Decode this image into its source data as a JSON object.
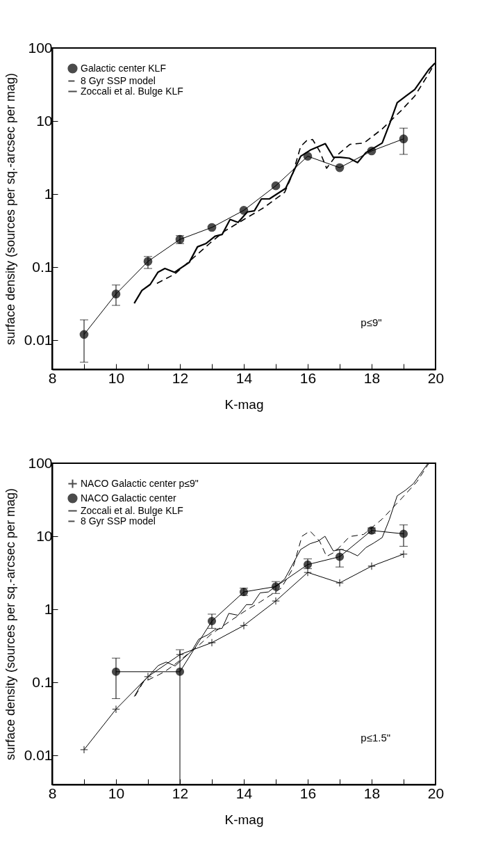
{
  "chart_data": [
    {
      "type": "line",
      "xlabel": "K-mag",
      "ylabel": "surface density (sources per sq.-arcsec per mag)",
      "log": true,
      "xlim": [
        8,
        20
      ],
      "ylim": [
        0.004,
        100
      ],
      "xticks": [
        8,
        {
          "value": 9,
          "label": null
        },
        10,
        {
          "value": 11,
          "label": null
        },
        12,
        {
          "value": 13,
          "label": null
        },
        14,
        {
          "value": 15,
          "label": null
        },
        16,
        {
          "value": 17,
          "label": null
        },
        18,
        {
          "value": 19,
          "label": null
        },
        20
      ],
      "yticks": [
        0.01,
        0.1,
        1,
        10,
        100
      ],
      "legend": "top left",
      "annotations": [
        "p≤9\""
      ],
      "series": [
        {
          "name": "Galactic center KLF",
          "color": "#000000",
          "marker": "circle",
          "line_style": "solid",
          "x": [
            9,
            10,
            11,
            12,
            13,
            14,
            15,
            16,
            17,
            18,
            19
          ],
          "values": [
            0.012,
            0.043,
            0.12,
            0.24,
            0.35,
            0.6,
            1.3,
            3.3,
            2.3,
            3.9,
            5.7
          ],
          "errors": [
            [
              0.005,
              0.019
            ],
            [
              0.03,
              0.057
            ],
            [
              0.096,
              0.14
            ],
            [
              0.21,
              0.27
            ],
            null,
            null,
            null,
            null,
            null,
            null,
            [
              3.5,
              8
            ]
          ]
        },
        {
          "name": "8 Gyr SSP model",
          "color": "#000000",
          "marker": "none",
          "line_style": "dashed",
          "x": [
            11.28,
            11.83,
            12.62,
            12.95,
            13.39,
            14.04,
            14.62,
            15.28,
            15.53,
            15.78,
            15.97,
            16.15,
            16.37,
            16.59,
            16.85,
            17.32,
            17.76,
            18.33,
            18.91,
            19.35,
            19.78,
            19.96
          ],
          "values": [
            0.06,
            0.08,
            0.16,
            0.215,
            0.31,
            0.46,
            0.65,
            1.06,
            1.9,
            4.5,
            5.4,
            5.6,
            3.9,
            2.26,
            3.2,
            4.8,
            5,
            7.8,
            13.7,
            22,
            44,
            60
          ]
        },
        {
          "name": "Zoccali et al. Bulge KLF",
          "color": "#000000",
          "marker": "none",
          "line_style": "solid",
          "x": [
            10.57,
            10.81,
            11.07,
            11.31,
            11.53,
            11.83,
            12.29,
            12.55,
            12.81,
            13.1,
            13.32,
            13.57,
            13.82,
            14.11,
            14.33,
            14.55,
            14.8,
            15.31,
            15.78,
            16.08,
            16.55,
            16.8,
            17.02,
            17.3,
            17.56,
            17.82,
            18.04,
            18.33,
            18.58,
            18.8,
            19.05,
            19.35,
            19.78,
            19.98
          ],
          "values": [
            0.032,
            0.048,
            0.058,
            0.085,
            0.096,
            0.085,
            0.116,
            0.19,
            0.21,
            0.265,
            0.28,
            0.45,
            0.41,
            0.57,
            0.59,
            0.86,
            0.86,
            1.2,
            3.3,
            4,
            4.9,
            3.2,
            3.2,
            3.1,
            2.7,
            3.7,
            4.2,
            5,
            9.6,
            17.8,
            21.6,
            27,
            50,
            62
          ]
        }
      ]
    },
    {
      "type": "line",
      "xlabel": "K-mag",
      "ylabel": "surface density (sources per sq.-arcsec per mag)",
      "log": true,
      "xlim": [
        8,
        20
      ],
      "ylim": [
        0.004,
        100
      ],
      "xticks": [
        8,
        {
          "value": 9,
          "label": null
        },
        10,
        {
          "value": 11,
          "label": null
        },
        12,
        {
          "value": 13,
          "label": null
        },
        14,
        {
          "value": 15,
          "label": null
        },
        16,
        {
          "value": 17,
          "label": null
        },
        18,
        {
          "value": 19,
          "label": null
        },
        20
      ],
      "yticks": [
        0.01,
        0.1,
        1,
        10,
        100
      ],
      "legend": "top left",
      "annotations": [
        "p≤1.5\""
      ],
      "series": [
        {
          "name": "NACO Galactic center p≤9\"",
          "color": "#000000",
          "marker": "cross",
          "line_style": "solid",
          "x": [
            9,
            10,
            11,
            12,
            13,
            14,
            15,
            16,
            17,
            18,
            19
          ],
          "values": [
            0.012,
            0.043,
            0.12,
            0.24,
            0.35,
            0.6,
            1.3,
            3.2,
            2.3,
            3.9,
            5.7
          ]
        },
        {
          "name": "NACO Galactic center",
          "color": "#000000",
          "marker": "circle",
          "line_style": "solid",
          "x": [
            10,
            12,
            13,
            14,
            15,
            16,
            17,
            18,
            19
          ],
          "values": [
            0.14,
            0.14,
            0.69,
            1.73,
            2.05,
            4.1,
            5.25,
            12,
            10.8
          ],
          "errors": [
            [
              0.06,
              0.215
            ],
            [
              0.004,
              0.28
            ],
            [
              0.55,
              0.86
            ],
            [
              1.55,
              1.95
            ],
            [
              1.65,
              2.4
            ],
            [
              3.6,
              4.9
            ],
            [
              3.8,
              6.6
            ],
            [
              11,
              13
            ],
            [
              7.3,
              14.3
            ]
          ]
        },
        {
          "name": "Zoccali et al. Bulge KLF",
          "color": "#000000",
          "marker": "none",
          "line_style": "solid",
          "x": [
            10.57,
            10.81,
            11.32,
            11.57,
            11.85,
            12.37,
            12.59,
            12.88,
            13.1,
            13.32,
            13.53,
            13.82,
            14.08,
            14.26,
            14.51,
            14.77,
            15.28,
            15.78,
            16.07,
            16.33,
            16.54,
            16.8,
            17.05,
            17.31,
            17.56,
            17.82,
            18.07,
            18.33,
            18.55,
            18.8,
            19.06,
            19.31,
            19.75
          ],
          "values": [
            0.064,
            0.097,
            0.17,
            0.19,
            0.168,
            0.27,
            0.39,
            0.45,
            0.53,
            0.55,
            0.88,
            0.83,
            1.16,
            1.16,
            1.68,
            1.73,
            2.6,
            6.6,
            7.9,
            8.6,
            10,
            6.3,
            6.6,
            6.1,
            5.4,
            7,
            8.1,
            9.6,
            16.7,
            35.8,
            42.7,
            52.6,
            98
          ]
        },
        {
          "name": "8 Gyr SSP model",
          "color": "#000000",
          "marker": "none",
          "line_style": "dashed",
          "x": [
            10.6,
            10.85,
            11.32,
            11.52,
            11.83,
            12.62,
            12.96,
            13.39,
            14.04,
            14.51,
            15.17,
            15.53,
            15.82,
            16.07,
            16.37,
            16.59,
            16.85,
            17.31,
            17.75,
            18.33,
            18.91,
            19.42,
            19.78
          ],
          "values": [
            0.065,
            0.1,
            0.126,
            0.14,
            0.175,
            0.33,
            0.45,
            0.61,
            0.95,
            1.26,
            1.95,
            3.6,
            10,
            11.8,
            8.6,
            5.3,
            6.1,
            9.9,
            10.6,
            17.2,
            32,
            56,
            98
          ]
        }
      ]
    }
  ]
}
